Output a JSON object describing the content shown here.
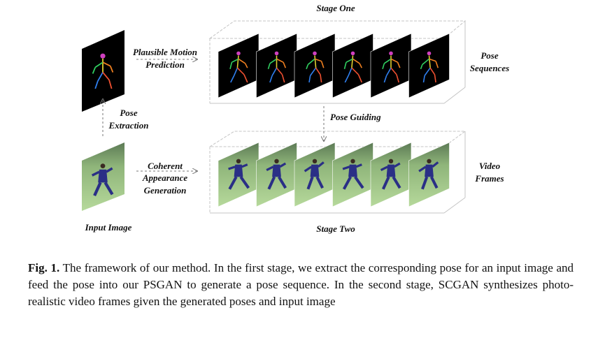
{
  "figure": {
    "stage_one": "Stage One",
    "stage_two": "Stage Two",
    "motion_label": [
      "Plausible Motion",
      "Prediction"
    ],
    "pose_extraction_label": [
      "Pose",
      "Extraction"
    ],
    "appearance_label": [
      "Coherent",
      "Appearance",
      "Generation"
    ],
    "pose_guiding_label": "Pose Guiding",
    "pose_sequences_label": [
      "Pose",
      "Sequences"
    ],
    "video_frames_label": [
      "Video",
      "Frames"
    ],
    "input_image_label": "Input Image",
    "pose_frame_count": 6,
    "video_frame_count": 6
  },
  "caption": {
    "prefix": "Fig. 1.",
    "text": "The framework of our method. In the first stage, we extract the corresponding pose for an input image and feed the pose into our PSGAN to generate a pose sequence. In the second stage, SCGAN synthesizes photo-realistic video frames given the generated poses and input image"
  },
  "colors": {
    "pose_background": "#000000",
    "grass_top": "#7fa86a",
    "grass_bottom": "#a7cf8c",
    "figure_suit": "#2a2f86",
    "skeleton_head": "#d040c0",
    "skeleton_spine": "#e0d030",
    "skeleton_arm_left": "#30d060",
    "skeleton_arm_right": "#f08020",
    "skeleton_leg_left": "#3080f0",
    "skeleton_leg_right": "#f05030",
    "box_edge": "#c0c0c0",
    "arrow": "#777777"
  }
}
